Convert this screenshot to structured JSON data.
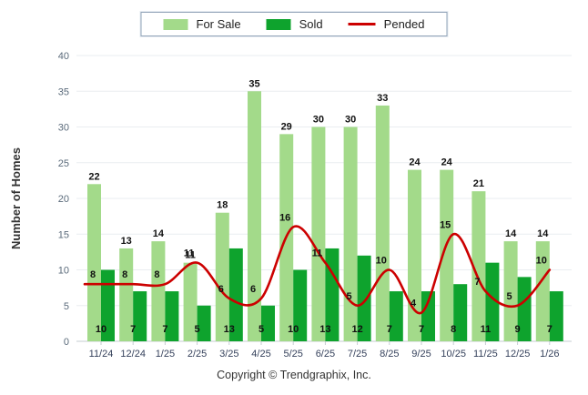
{
  "legend": {
    "items": [
      {
        "label": "For Sale",
        "swatch": "bar",
        "color": "#A3DA8A"
      },
      {
        "label": "Sold",
        "swatch": "bar",
        "color": "#0EA32D"
      },
      {
        "label": "Pended",
        "swatch": "line",
        "color": "#CC0000"
      }
    ]
  },
  "y_axis": {
    "title": "Number of Homes",
    "ticks": [
      0,
      5,
      10,
      15,
      20,
      25,
      30,
      35,
      40
    ],
    "min": 0,
    "max": 40
  },
  "footer": {
    "copyright": "Copyright © Trendgraphix, Inc."
  },
  "chart_data": {
    "type": "bar",
    "title": "",
    "xlabel": "",
    "ylabel": "Number of Homes",
    "ylim": [
      0,
      40
    ],
    "yticks": [
      0,
      5,
      10,
      15,
      20,
      25,
      30,
      35,
      40
    ],
    "grid": true,
    "legend_position": "top",
    "categories": [
      "11/24",
      "12/24",
      "1/25",
      "2/25",
      "3/25",
      "4/25",
      "5/25",
      "6/25",
      "7/25",
      "8/25",
      "9/25",
      "10/25",
      "11/25",
      "12/25",
      "1/26"
    ],
    "series": [
      {
        "name": "For Sale",
        "type": "bar",
        "color": "#A3DA8A",
        "values": [
          22,
          13,
          14,
          11,
          18,
          35,
          29,
          30,
          30,
          33,
          24,
          24,
          21,
          14,
          14
        ]
      },
      {
        "name": "Sold",
        "type": "bar",
        "color": "#0EA32D",
        "values": [
          10,
          7,
          7,
          5,
          13,
          5,
          10,
          13,
          12,
          7,
          7,
          8,
          11,
          9,
          7
        ]
      },
      {
        "name": "Pended",
        "type": "line",
        "color": "#CC0000",
        "values": [
          8,
          8,
          8,
          11,
          6,
          6,
          16,
          11,
          5,
          10,
          4,
          15,
          7,
          5,
          10
        ]
      }
    ]
  }
}
